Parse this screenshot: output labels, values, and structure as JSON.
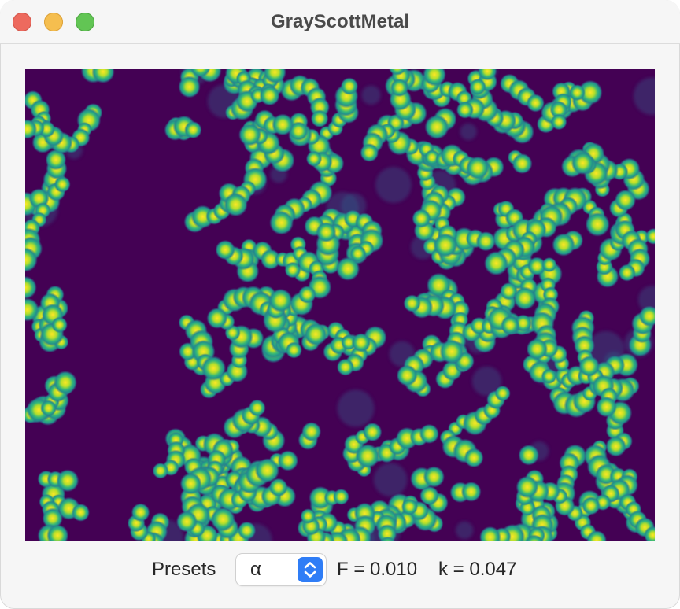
{
  "window": {
    "title": "GrayScottMetal"
  },
  "simulation": {
    "background_color": "#440154",
    "spot_colors": [
      "#fde725",
      "#b5de2b",
      "#35b779",
      "#21918c",
      "#31688e"
    ],
    "colormap": "viridis"
  },
  "controls": {
    "presets_label": "Presets",
    "preset_selected": "α",
    "f_text": "F = 0.010",
    "k_text": "k = 0.047"
  },
  "icons": {
    "close": "close-icon",
    "minimize": "minimize-icon",
    "zoom": "zoom-icon",
    "stepper": "up-down-chevron-icon"
  }
}
